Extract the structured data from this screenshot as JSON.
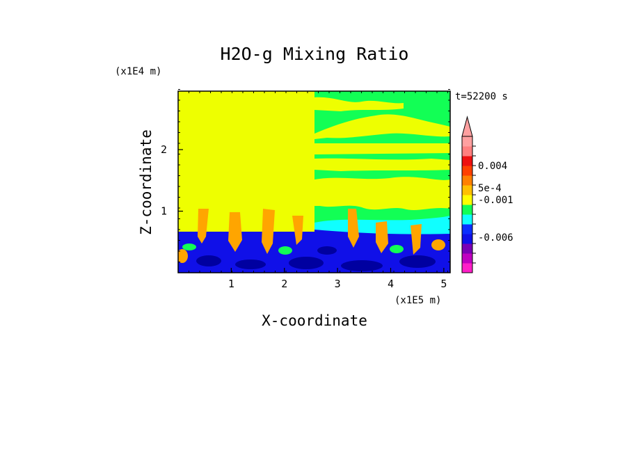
{
  "chart_data": {
    "type": "heatmap",
    "title": "H2O-g Mixing Ratio",
    "xlabel": "X-coordinate",
    "ylabel": "Z-coordinate",
    "x_unit": "(x1E5 m)",
    "y_unit": "(x1E4 m)",
    "time_label": "t=52200 s",
    "xlim": [
      0,
      5.12
    ],
    "ylim": [
      0,
      2.95
    ],
    "x_ticks": [
      1,
      2,
      3,
      4,
      5
    ],
    "y_ticks": [
      1,
      2
    ],
    "colorbar": {
      "top_extension_arrow": true,
      "colors": [
        "#ff1fc8",
        "#c000c0",
        "#7a00b5",
        "#1010e8",
        "#0b2fff",
        "#10ffff",
        "#12ff55",
        "#ffff00",
        "#ffc000",
        "#ff8000",
        "#ff4000",
        "#ee1010",
        "#ff7f7f",
        "#ffa0a0"
      ],
      "tick_labels": [
        "0.004",
        "5e-4",
        "-0.001",
        "-0.006"
      ]
    },
    "field_colors": {
      "upper_left": "#eeff00",
      "upper_right_background": "#12ff55",
      "upper_right_bands": "#eeff00",
      "boundary_layer": "#1010e8",
      "dark_patches": "#0000a0",
      "cyan_zone": "#10ffff",
      "orange_plumes": "#ffa500"
    }
  }
}
